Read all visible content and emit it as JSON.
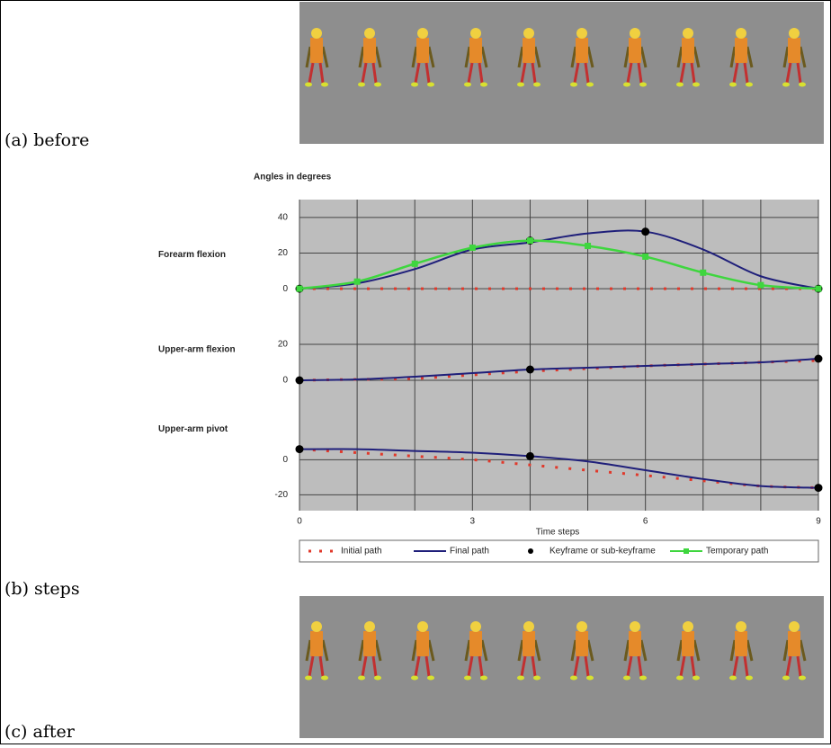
{
  "figure": {
    "labels": [
      "(a) before",
      "(b) steps",
      "(c) after"
    ]
  },
  "chart_data": {
    "type": "line",
    "title": "Angles in degrees",
    "x_label": "Time steps",
    "x": [
      0,
      1,
      2,
      3,
      4,
      5,
      6,
      7,
      8,
      9
    ],
    "xlim": [
      0,
      9
    ],
    "xticks": [
      0,
      3,
      6,
      9
    ],
    "grid": true,
    "legend": [
      {
        "name": "Initial path",
        "color": "#e0392b",
        "style": "dotted"
      },
      {
        "name": "Final path",
        "color": "#1f1f7a",
        "style": "line"
      },
      {
        "name": "Keyframe or sub-keyframe",
        "color": "#000000",
        "style": "marker"
      },
      {
        "name": "Temporary path",
        "color": "#3ed63e",
        "style": "line-marker"
      }
    ],
    "panels": [
      {
        "label": "Forearm flexion",
        "ylim": [
          -7,
          50
        ],
        "yticks": [
          0,
          20,
          40
        ],
        "series": [
          [
            0,
            0,
            0,
            0,
            0,
            0,
            0,
            0,
            0,
            0
          ],
          [
            0,
            3,
            11,
            22,
            26,
            31,
            32,
            22,
            7,
            0
          ],
          [
            0,
            null,
            null,
            null,
            27,
            null,
            32,
            null,
            null,
            0
          ],
          [
            0,
            4,
            14,
            23,
            27,
            24,
            18,
            9,
            2,
            0
          ]
        ]
      },
      {
        "label": "Upper-arm flexion",
        "ylim": [
          -10,
          30
        ],
        "yticks": [
          0,
          20
        ],
        "series": [
          [
            0,
            0.5,
            1,
            3,
            5,
            6.5,
            8,
            9,
            10,
            11
          ],
          [
            0,
            0.5,
            2,
            4,
            6,
            7,
            8,
            9,
            10,
            12
          ],
          [
            0,
            null,
            null,
            null,
            6,
            null,
            null,
            null,
            null,
            12
          ],
          []
        ]
      },
      {
        "label": "Upper-arm pivot",
        "ylim": [
          -28,
          14
        ],
        "yticks": [
          0,
          -20
        ],
        "series": [
          [
            6,
            4,
            2,
            0,
            -3,
            -6,
            -9,
            -12,
            -15,
            -16
          ],
          [
            6,
            6,
            5,
            4,
            2,
            -1,
            -6,
            -11,
            -15,
            -16
          ],
          [
            6,
            null,
            null,
            null,
            2,
            null,
            null,
            null,
            null,
            -16
          ],
          []
        ]
      }
    ]
  }
}
